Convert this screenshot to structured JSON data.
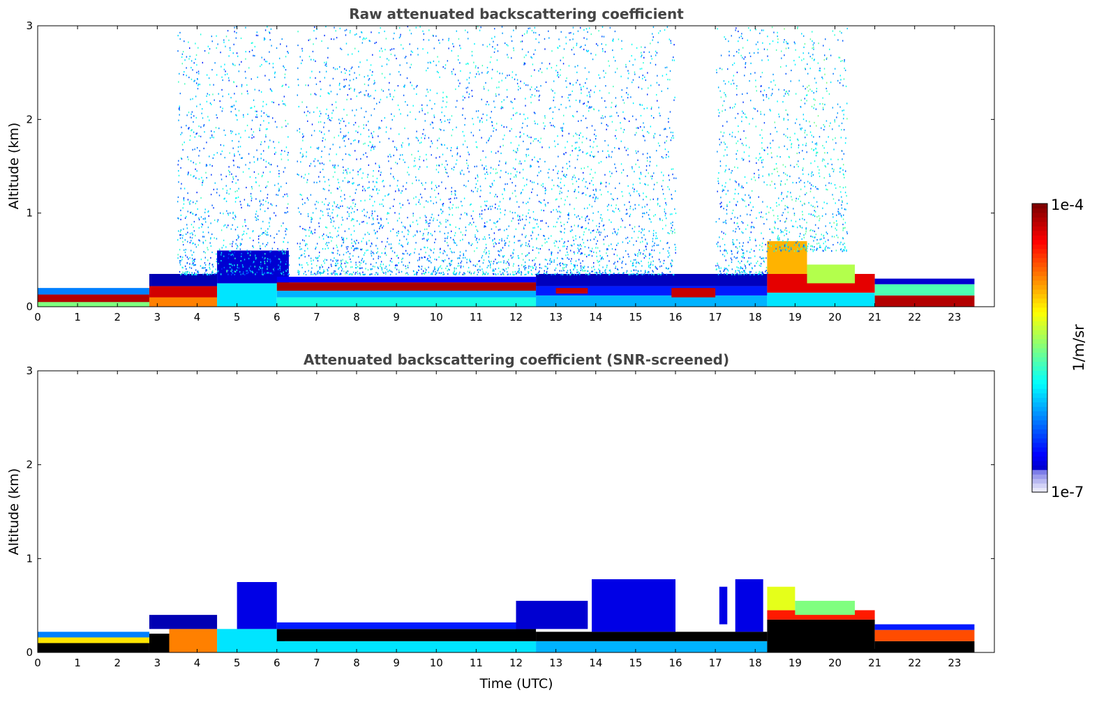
{
  "chart_data": [
    {
      "type": "heatmap",
      "title": "Raw attenuated backscattering coefficient",
      "xlabel": "",
      "ylabel": "Altitude (km)",
      "xlim": [
        0,
        24
      ],
      "ylim": [
        0,
        3
      ],
      "xticks": [
        0,
        1,
        2,
        3,
        4,
        5,
        6,
        7,
        8,
        9,
        10,
        11,
        12,
        13,
        14,
        15,
        16,
        17,
        18,
        19,
        20,
        21,
        22,
        23
      ],
      "yticks": [
        0,
        1,
        2,
        3
      ],
      "layers": [
        {
          "kind": "layer",
          "x": [
            0.0,
            2.8
          ],
          "y": [
            0.0,
            0.1
          ],
          "level": 0.5
        },
        {
          "kind": "layer",
          "x": [
            0.0,
            2.8
          ],
          "y": [
            0.05,
            0.13
          ],
          "level": 0.95
        },
        {
          "kind": "layer",
          "x": [
            0.0,
            2.8
          ],
          "y": [
            0.13,
            0.2
          ],
          "level": 0.25
        },
        {
          "kind": "layer",
          "x": [
            2.8,
            4.5
          ],
          "y": [
            0.0,
            0.14
          ],
          "level": 0.75
        },
        {
          "kind": "layer",
          "x": [
            2.8,
            4.5
          ],
          "y": [
            0.1,
            0.22
          ],
          "level": 0.92
        },
        {
          "kind": "layer",
          "x": [
            2.8,
            4.5
          ],
          "y": [
            0.22,
            0.35
          ],
          "level": 0.05
        },
        {
          "kind": "layer",
          "x": [
            4.5,
            6.0
          ],
          "y": [
            0.0,
            0.25
          ],
          "level": 0.35
        },
        {
          "kind": "layer",
          "x": [
            4.5,
            6.3
          ],
          "y": [
            0.25,
            0.6
          ],
          "level": 0.08
        },
        {
          "kind": "layer",
          "x": [
            6.0,
            12.5
          ],
          "y": [
            0.0,
            0.1
          ],
          "level": 0.4
        },
        {
          "kind": "layer",
          "x": [
            6.0,
            12.5
          ],
          "y": [
            0.1,
            0.17
          ],
          "level": 0.3
        },
        {
          "kind": "layer",
          "x": [
            6.0,
            12.5
          ],
          "y": [
            0.17,
            0.26
          ],
          "level": 0.96
        },
        {
          "kind": "layer",
          "x": [
            6.0,
            12.5
          ],
          "y": [
            0.26,
            0.32
          ],
          "level": 0.12
        },
        {
          "kind": "layer",
          "x": [
            12.5,
            18.3
          ],
          "y": [
            0.0,
            0.12
          ],
          "level": 0.3
        },
        {
          "kind": "layer",
          "x": [
            12.5,
            18.3
          ],
          "y": [
            0.12,
            0.22
          ],
          "level": 0.15
        },
        {
          "kind": "layer",
          "x": [
            12.5,
            18.3
          ],
          "y": [
            0.22,
            0.35
          ],
          "level": 0.06
        },
        {
          "kind": "layer",
          "x": [
            13.0,
            13.8
          ],
          "y": [
            0.14,
            0.2
          ],
          "level": 0.93
        },
        {
          "kind": "layer",
          "x": [
            15.9,
            17.0
          ],
          "y": [
            0.1,
            0.2
          ],
          "level": 0.93
        },
        {
          "kind": "layer",
          "x": [
            18.3,
            21.0
          ],
          "y": [
            0.0,
            0.15
          ],
          "level": 0.35
        },
        {
          "kind": "layer",
          "x": [
            18.3,
            21.0
          ],
          "y": [
            0.15,
            0.35
          ],
          "level": 0.9
        },
        {
          "kind": "layer",
          "x": [
            18.3,
            19.3
          ],
          "y": [
            0.35,
            0.7
          ],
          "level": 0.7
        },
        {
          "kind": "layer",
          "x": [
            19.3,
            20.5
          ],
          "y": [
            0.25,
            0.45
          ],
          "level": 0.55
        },
        {
          "kind": "layer",
          "x": [
            21.0,
            23.5
          ],
          "y": [
            0.0,
            0.12
          ],
          "level": 0.95
        },
        {
          "kind": "layer",
          "x": [
            21.0,
            23.5
          ],
          "y": [
            0.12,
            0.24
          ],
          "level": 0.45
        },
        {
          "kind": "layer",
          "x": [
            21.0,
            23.5
          ],
          "y": [
            0.24,
            0.3
          ],
          "level": 0.08
        },
        {
          "kind": "noise",
          "x": [
            3.5,
            6.3
          ],
          "y": [
            0.35,
            3.0
          ],
          "level": 0.15
        },
        {
          "kind": "noise",
          "x": [
            6.5,
            12.0
          ],
          "y": [
            0.35,
            3.0
          ],
          "level": 0.15
        },
        {
          "kind": "noise",
          "x": [
            12.0,
            16.0
          ],
          "y": [
            0.35,
            3.0
          ],
          "level": 0.15
        },
        {
          "kind": "noise",
          "x": [
            17.0,
            18.3
          ],
          "y": [
            0.35,
            3.0
          ],
          "level": 0.15
        },
        {
          "kind": "noise",
          "x": [
            18.3,
            20.3
          ],
          "y": [
            0.6,
            3.0
          ],
          "level": 0.2
        }
      ]
    },
    {
      "type": "heatmap",
      "title": "Attenuated backscattering coefficient (SNR-screened)",
      "xlabel": "Time (UTC)",
      "ylabel": "Altitude (km)",
      "xlim": [
        0,
        24
      ],
      "ylim": [
        0,
        3
      ],
      "xticks": [
        0,
        1,
        2,
        3,
        4,
        5,
        6,
        7,
        8,
        9,
        10,
        11,
        12,
        13,
        14,
        15,
        16,
        17,
        18,
        19,
        20,
        21,
        22,
        23
      ],
      "yticks": [
        0,
        1,
        2,
        3
      ],
      "layers": [
        {
          "kind": "layer",
          "x": [
            0.0,
            2.8
          ],
          "y": [
            0.0,
            0.1
          ],
          "level": -1
        },
        {
          "kind": "layer",
          "x": [
            0.0,
            2.8
          ],
          "y": [
            0.1,
            0.16
          ],
          "level": 0.65
        },
        {
          "kind": "layer",
          "x": [
            0.0,
            2.8
          ],
          "y": [
            0.16,
            0.22
          ],
          "level": 0.25
        },
        {
          "kind": "layer",
          "x": [
            2.8,
            3.3
          ],
          "y": [
            0.0,
            0.2
          ],
          "level": -1
        },
        {
          "kind": "layer",
          "x": [
            3.3,
            4.5
          ],
          "y": [
            0.0,
            0.25
          ],
          "level": 0.75
        },
        {
          "kind": "layer",
          "x": [
            2.8,
            4.5
          ],
          "y": [
            0.25,
            0.4
          ],
          "level": 0.05
        },
        {
          "kind": "layer",
          "x": [
            4.5,
            6.2
          ],
          "y": [
            0.0,
            0.25
          ],
          "level": 0.35
        },
        {
          "kind": "layer",
          "x": [
            5.0,
            6.0
          ],
          "y": [
            0.25,
            0.75
          ],
          "level": 0.1
        },
        {
          "kind": "layer",
          "x": [
            6.0,
            12.5
          ],
          "y": [
            0.0,
            0.12
          ],
          "level": 0.35
        },
        {
          "kind": "layer",
          "x": [
            6.0,
            12.5
          ],
          "y": [
            0.12,
            0.25
          ],
          "level": -1
        },
        {
          "kind": "layer",
          "x": [
            6.0,
            12.5
          ],
          "y": [
            0.25,
            0.32
          ],
          "level": 0.15
        },
        {
          "kind": "layer",
          "x": [
            12.0,
            13.8
          ],
          "y": [
            0.25,
            0.55
          ],
          "level": 0.08
        },
        {
          "kind": "layer",
          "x": [
            12.5,
            18.3
          ],
          "y": [
            0.0,
            0.12
          ],
          "level": 0.3
        },
        {
          "kind": "layer",
          "x": [
            12.5,
            18.3
          ],
          "y": [
            0.12,
            0.22
          ],
          "level": -1
        },
        {
          "kind": "layer",
          "x": [
            13.9,
            16.0
          ],
          "y": [
            0.22,
            0.78
          ],
          "level": 0.1
        },
        {
          "kind": "layer",
          "x": [
            17.5,
            18.2
          ],
          "y": [
            0.22,
            0.78
          ],
          "level": 0.1
        },
        {
          "kind": "layer",
          "x": [
            17.1,
            17.3
          ],
          "y": [
            0.3,
            0.7
          ],
          "level": 0.1
        },
        {
          "kind": "layer",
          "x": [
            18.3,
            21.0
          ],
          "y": [
            0.0,
            0.35
          ],
          "level": -1
        },
        {
          "kind": "layer",
          "x": [
            18.3,
            21.0
          ],
          "y": [
            0.35,
            0.45
          ],
          "level": 0.85
        },
        {
          "kind": "layer",
          "x": [
            18.3,
            19.0
          ],
          "y": [
            0.45,
            0.7
          ],
          "level": 0.6
        },
        {
          "kind": "layer",
          "x": [
            19.0,
            20.5
          ],
          "y": [
            0.4,
            0.55
          ],
          "level": 0.5
        },
        {
          "kind": "layer",
          "x": [
            21.0,
            23.5
          ],
          "y": [
            0.0,
            0.12
          ],
          "level": -1
        },
        {
          "kind": "layer",
          "x": [
            21.0,
            23.5
          ],
          "y": [
            0.12,
            0.24
          ],
          "level": 0.8
        },
        {
          "kind": "layer",
          "x": [
            21.0,
            23.5
          ],
          "y": [
            0.24,
            0.3
          ],
          "level": 0.15
        }
      ]
    }
  ],
  "colorbar": {
    "colormap": "jet",
    "min_label": "1e-7",
    "max_label": "1e-4",
    "label": "1/m/sr",
    "scale": "log",
    "range": [
      1e-07,
      0.0001
    ]
  }
}
